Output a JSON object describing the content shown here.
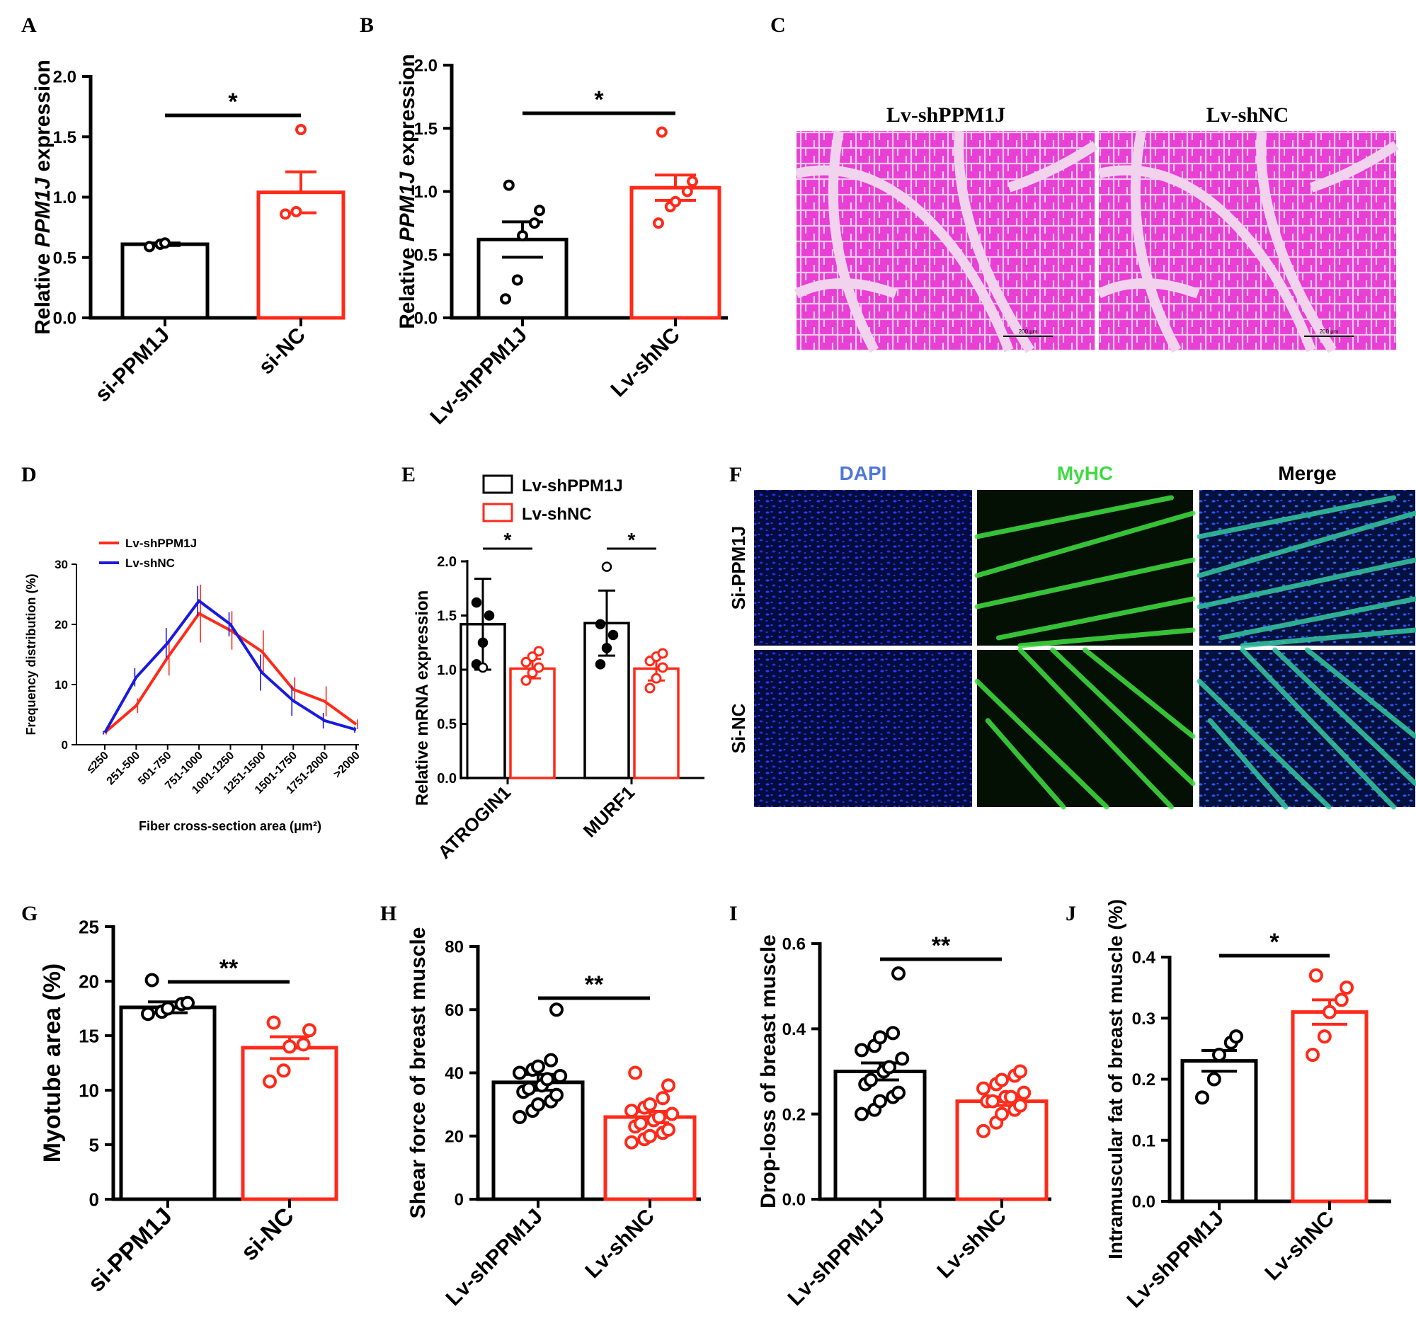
{
  "panel_letters": {
    "A": "A",
    "B": "B",
    "C": "C",
    "D": "D",
    "E": "E",
    "F": "F",
    "G": "G",
    "H": "H",
    "I": "I",
    "J": "J"
  },
  "colors": {
    "black": "#000000",
    "red": "#ff2a1a",
    "blue": "#1a1adf",
    "green": "#43d946",
    "dapi_label": "#4f78d8",
    "he_pink": "#e83fd4"
  },
  "images": {
    "C": {
      "titles": [
        "Lv-shPPM1J",
        "Lv-shNC"
      ],
      "scale_label": "200 μm"
    },
    "F": {
      "columns": [
        "DAPI",
        "MyHC",
        "Merge"
      ],
      "rows": [
        "Si-PPM1J",
        "Si-NC"
      ]
    }
  },
  "chart_data": [
    {
      "panel": "A",
      "type": "bar",
      "ylabel_pre": "Relative ",
      "ylabel_gene": "PPM1J",
      "ylabel_post": " expression",
      "ylim": [
        0,
        2.0
      ],
      "yticks": [
        0.0,
        0.5,
        1.0,
        1.5,
        2.0
      ],
      "tick_decimals": 1,
      "categories": [
        "si-PPM1J",
        "si-NC"
      ],
      "values": [
        0.61,
        1.04
      ],
      "errors": [
        0.01,
        0.17
      ],
      "points": [
        [
          0.59,
          0.61,
          0.62
        ],
        [
          0.86,
          0.88,
          1.56
        ]
      ],
      "significance": "*"
    },
    {
      "panel": "B",
      "type": "bar",
      "ylabel_pre": "Relative ",
      "ylabel_gene": "PPM1J",
      "ylabel_post": " expression",
      "ylim": [
        0,
        2.0
      ],
      "yticks": [
        0.0,
        0.5,
        1.0,
        1.5,
        2.0
      ],
      "tick_decimals": 1,
      "categories": [
        "Lv-shPPM1J",
        "Lv-shNC"
      ],
      "values": [
        0.62,
        1.03
      ],
      "errors": [
        0.14,
        0.1
      ],
      "points": [
        [
          0.15,
          0.3,
          0.65,
          0.75,
          0.85,
          1.05
        ],
        [
          0.75,
          0.88,
          0.92,
          1.0,
          1.08,
          1.47
        ]
      ],
      "significance": "*"
    },
    {
      "panel": "D",
      "type": "line",
      "ylabel": "Frequency distribution (%)",
      "xlabel": "Fiber cross-section area (μm²)",
      "ylim": [
        0,
        30
      ],
      "yticks": [
        0,
        10,
        20,
        30
      ],
      "categories": [
        "≤250",
        "251-500",
        "501-750",
        "751-1000",
        "1001-1250",
        "1251-1500",
        "1501-1750",
        "1751-2000",
        ">2000"
      ],
      "legend_position": "top-left",
      "series": [
        {
          "name": "Lv-shPPM1J",
          "color": "#ff2a1a",
          "values": [
            2.0,
            6.5,
            14.5,
            21.8,
            19.0,
            15.5,
            9.2,
            7.2,
            3.4
          ],
          "errors": [
            0.3,
            1.2,
            3.0,
            4.8,
            3.2,
            3.5,
            2.0,
            2.5,
            0.8
          ]
        },
        {
          "name": "Lv-shNC",
          "color": "#1a1adf",
          "values": [
            2.0,
            11.2,
            16.9,
            23.9,
            20.0,
            12.0,
            7.3,
            4.0,
            2.5
          ],
          "errors": [
            0.3,
            1.5,
            2.5,
            2.5,
            2.0,
            3.0,
            2.5,
            1.3,
            0.5
          ]
        }
      ]
    },
    {
      "panel": "E",
      "type": "grouped_bar",
      "ylabel": "Relative mRNA expression",
      "ylim": [
        0,
        2.0
      ],
      "yticks": [
        0.0,
        0.5,
        1.0,
        1.5,
        2.0
      ],
      "tick_decimals": 1,
      "categories": [
        "ATROGIN1",
        "MURF1"
      ],
      "legend_position": "top",
      "series": [
        {
          "name": "Lv-shPPM1J",
          "color": "#000000",
          "values": [
            1.42,
            1.43
          ],
          "errors": [
            0.42,
            0.3
          ],
          "points": [
            [
              1.05,
              1.25,
              1.5,
              1.62,
              1.02
            ],
            [
              1.05,
              1.2,
              1.32,
              1.42,
              1.95
            ]
          ]
        },
        {
          "name": "Lv-shNC",
          "color": "#ff2a1a",
          "values": [
            1.01,
            1.01
          ],
          "errors": [
            0.09,
            0.11
          ],
          "points": [
            [
              0.9,
              0.97,
              1.02,
              1.07,
              1.12,
              1.17
            ],
            [
              0.83,
              0.92,
              1.02,
              1.08,
              1.12,
              1.15
            ]
          ]
        }
      ],
      "significance": [
        "*",
        "*"
      ]
    },
    {
      "panel": "G",
      "type": "bar",
      "ylabel": "Myotube area (%)",
      "ylim": [
        0,
        25
      ],
      "yticks": [
        0,
        5,
        10,
        15,
        20,
        25
      ],
      "tick_decimals": 0,
      "categories": [
        "si-PPM1J",
        "si-NC"
      ],
      "values": [
        17.6,
        13.9
      ],
      "errors": [
        0.5,
        1.0
      ],
      "points": [
        [
          17.0,
          17.2,
          17.5,
          17.9,
          18.0,
          20.1
        ],
        [
          10.8,
          11.8,
          14.0,
          14.2,
          15.5,
          16.2
        ]
      ],
      "significance": "**"
    },
    {
      "panel": "H",
      "type": "bar",
      "ylabel": "Shear force of breast muscle",
      "ylim": [
        0,
        80
      ],
      "yticks": [
        0,
        20,
        40,
        60,
        80
      ],
      "tick_decimals": 0,
      "categories": [
        "Lv-shPPM1J",
        "Lv-shNC"
      ],
      "values": [
        37.0,
        26.0
      ],
      "errors": [
        2.5,
        1.8
      ],
      "points": [
        [
          26,
          28,
          30,
          31,
          33,
          34,
          35,
          36,
          38,
          39,
          40,
          41,
          42,
          44,
          60
        ],
        [
          18,
          19,
          20,
          21,
          22,
          23,
          24,
          25,
          26,
          27,
          28,
          29,
          30,
          32,
          36,
          40
        ]
      ],
      "significance": "**"
    },
    {
      "panel": "I",
      "type": "bar",
      "ylabel": "Drop-loss of breast muscle",
      "ylim": [
        0,
        0.6
      ],
      "yticks": [
        0.0,
        0.2,
        0.4,
        0.6
      ],
      "tick_decimals": 1,
      "categories": [
        "Lv-shPPM1J",
        "Lv-shNC"
      ],
      "values": [
        0.3,
        0.23
      ],
      "errors": [
        0.02,
        0.01
      ],
      "points": [
        [
          0.2,
          0.21,
          0.23,
          0.24,
          0.25,
          0.27,
          0.28,
          0.3,
          0.31,
          0.33,
          0.35,
          0.36,
          0.38,
          0.39,
          0.53
        ],
        [
          0.16,
          0.18,
          0.2,
          0.21,
          0.22,
          0.23,
          0.23,
          0.24,
          0.24,
          0.25,
          0.26,
          0.27,
          0.28,
          0.29,
          0.3
        ]
      ],
      "significance": "**"
    },
    {
      "panel": "J",
      "type": "bar",
      "ylabel": "Intramuscular fat of breast muscle (%)",
      "ylim": [
        0,
        0.4
      ],
      "yticks": [
        0.0,
        0.1,
        0.2,
        0.3,
        0.4
      ],
      "tick_decimals": 1,
      "categories": [
        "Lv-shPPM1J",
        "Lv-shNC"
      ],
      "values": [
        0.23,
        0.31
      ],
      "errors": [
        0.017,
        0.02
      ],
      "points": [
        [
          0.17,
          0.2,
          0.24,
          0.26,
          0.27
        ],
        [
          0.24,
          0.27,
          0.31,
          0.33,
          0.35,
          0.37
        ]
      ],
      "significance": "*"
    }
  ]
}
